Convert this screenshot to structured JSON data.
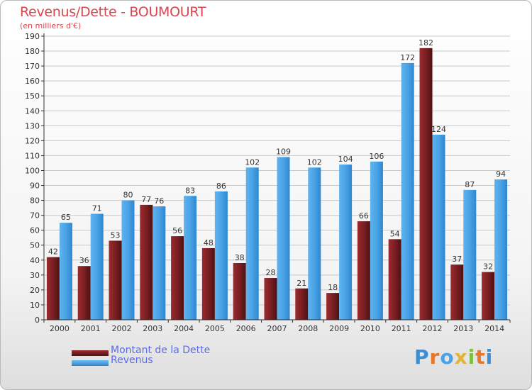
{
  "title": "Revenus/Dette - BOUMOURT",
  "subtitle": "(en milliers d'€)",
  "logo_text": "Proxiti",
  "colors": {
    "title": "#d9464e",
    "legend_text": "#5b6ae6",
    "dette": "#7a1f22",
    "revenus": "#4aa3e6",
    "grid": "#c8c8c8",
    "axis": "#333333"
  },
  "legend": {
    "dette_label": "Montant de la Dette",
    "revenus_label": "Revenus"
  },
  "chart_data": {
    "type": "bar",
    "categories": [
      "2000",
      "2001",
      "2002",
      "2003",
      "2004",
      "2005",
      "2006",
      "2007",
      "2008",
      "2009",
      "2010",
      "2011",
      "2012",
      "2013",
      "2014"
    ],
    "series": [
      {
        "name": "Montant de la Dette",
        "values": [
          42,
          36,
          53,
          77,
          56,
          48,
          38,
          28,
          21,
          18,
          66,
          54,
          182,
          37,
          32
        ]
      },
      {
        "name": "Revenus",
        "values": [
          65,
          71,
          80,
          76,
          83,
          86,
          102,
          109,
          102,
          104,
          106,
          172,
          124,
          87,
          94
        ]
      }
    ],
    "ylim": [
      0,
      190
    ],
    "yticks": [
      0,
      10,
      20,
      30,
      40,
      50,
      60,
      70,
      80,
      90,
      100,
      110,
      120,
      130,
      140,
      150,
      160,
      170,
      180,
      190
    ],
    "grid": "horizontal",
    "legend_position": "bottom-left",
    "xlabel": "",
    "ylabel": ""
  }
}
